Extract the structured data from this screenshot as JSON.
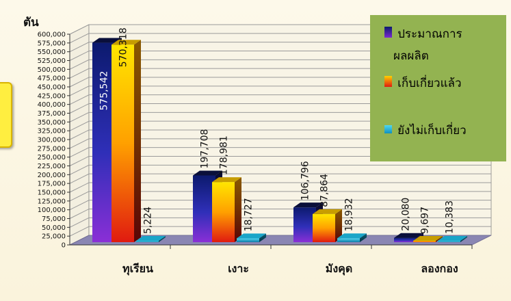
{
  "chart_data": {
    "type": "bar",
    "ylabel": "ตัน",
    "categories": [
      "ทุเรียน",
      "เงาะ",
      "มังคุด",
      "ลองกอง"
    ],
    "series": [
      {
        "name": "ประมาณการผลผลิต",
        "values": [
          575542,
          197708,
          106796,
          20080
        ],
        "labels": [
          "575,542",
          "197,708",
          "106,796",
          "20,080"
        ],
        "color": "#1b1f8a"
      },
      {
        "name": "เก็บเกี่ยวแล้ว",
        "values": [
          570318,
          178981,
          87864,
          9697
        ],
        "labels": [
          "570,318",
          "178,981",
          "87,864",
          "9,697"
        ],
        "color": "#f5c400"
      },
      {
        "name": "ยังไม่เก็บเกี่ยว",
        "values": [
          5224,
          18727,
          18932,
          10383
        ],
        "labels": [
          "5,224",
          "18,727",
          "18,932",
          "10,383"
        ],
        "color": "#29b6e8"
      }
    ],
    "ylim": [
      0,
      600000
    ],
    "yticks": [
      0,
      25000,
      50000,
      75000,
      100000,
      125000,
      150000,
      175000,
      200000,
      225000,
      250000,
      275000,
      300000,
      325000,
      350000,
      375000,
      400000,
      425000,
      450000,
      475000,
      500000,
      525000,
      550000,
      575000,
      600000
    ],
    "ytick_labels": [
      "0",
      "25,000",
      "50,000",
      "75,000",
      "100,000",
      "125,000",
      "150,000",
      "175,000",
      "200,000",
      "225,000",
      "250,000",
      "275,000",
      "300,000",
      "325,000",
      "350,000",
      "375,000",
      "400,000",
      "425,000",
      "450,000",
      "475,000",
      "500,000",
      "525,000",
      "550,000",
      "575,000",
      "600,000"
    ],
    "grid": true,
    "legend_position": "top-right"
  },
  "legend": {
    "item1_line1": "ประมาณการ",
    "item1_line2": "ผลผลิต",
    "item2": "เก็บเกี่ยวแล้ว",
    "item3": "ยังไม่เก็บเกี่ยว",
    "background": "#93b351"
  },
  "colors": {
    "sidebox": "#ffec3d",
    "plot_floor": "#8a86b3",
    "gridline": "#9a9a9a"
  }
}
